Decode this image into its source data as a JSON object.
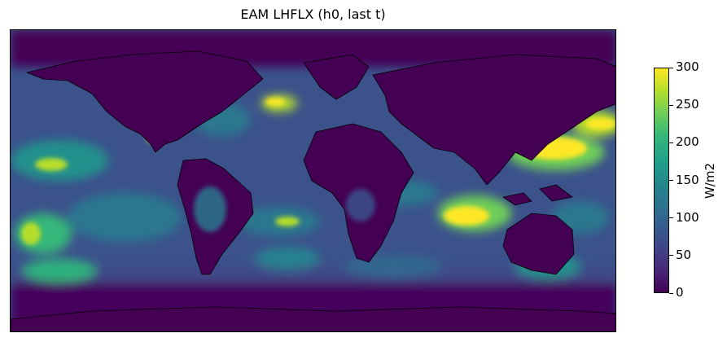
{
  "title": "EAM LHFLX (h0, last t)",
  "colorbar": {
    "label": "W/m2",
    "ticks": [
      "0",
      "50",
      "100",
      "150",
      "200",
      "250",
      "300"
    ],
    "range": [
      0,
      300
    ],
    "colormap": "viridis",
    "colors": [
      "#440154",
      "#3e4a89",
      "#26828e",
      "#35b779",
      "#b5de2b",
      "#fde725"
    ]
  },
  "map": {
    "projection": "PlateCarree",
    "variable": "LHFLX",
    "land_color": "#440154",
    "coastline_color": "#000000"
  }
}
